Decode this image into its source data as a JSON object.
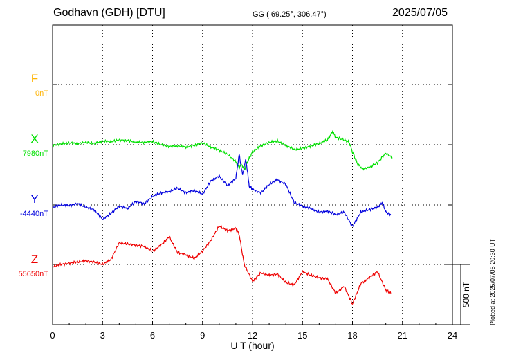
{
  "header": {
    "station": "Godhavn (GDH)  [DTU]",
    "coords": "GG ( 69.25°, 306.47°)",
    "date": "2025/07/05"
  },
  "footer": {
    "plotted": "Plotted at 2025/07/05 20:30 UT"
  },
  "chart_data": {
    "type": "line",
    "xlabel": "U T (hour)",
    "xlim": [
      0,
      24
    ],
    "xticks": [
      "0",
      "3",
      "6",
      "9",
      "12",
      "15",
      "18",
      "21",
      "24"
    ],
    "scale_bar_label": "500 nT",
    "scale_bar_nT": 500,
    "grid": true,
    "colors": {
      "F": "#ffb300",
      "X": "#00e000",
      "Y": "#0000dd",
      "Z": "#ee0000"
    },
    "series": [
      {
        "name": "F",
        "baseline_label": "0nT",
        "points": []
      },
      {
        "name": "X",
        "baseline_label": "7980nT",
        "points": [
          [
            0,
            -5
          ],
          [
            0.5,
            5
          ],
          [
            1,
            15
          ],
          [
            1.5,
            10
          ],
          [
            2,
            20
          ],
          [
            2.5,
            10
          ],
          [
            3,
            30
          ],
          [
            3.5,
            25
          ],
          [
            4,
            40
          ],
          [
            4.5,
            35
          ],
          [
            5,
            20
          ],
          [
            5.5,
            20
          ],
          [
            6,
            25
          ],
          [
            6.5,
            0
          ],
          [
            7,
            -15
          ],
          [
            7.5,
            -10
          ],
          [
            8,
            -20
          ],
          [
            8.5,
            -5
          ],
          [
            9,
            15
          ],
          [
            9.5,
            -20
          ],
          [
            10,
            -45
          ],
          [
            10.5,
            -80
          ],
          [
            11,
            -140
          ],
          [
            11.2,
            -190
          ],
          [
            11.35,
            -160
          ],
          [
            11.5,
            -210
          ],
          [
            11.7,
            -140
          ],
          [
            12,
            -60
          ],
          [
            12.5,
            -10
          ],
          [
            13,
            20
          ],
          [
            13.5,
            30
          ],
          [
            14,
            -5
          ],
          [
            14.5,
            -40
          ],
          [
            15,
            -30
          ],
          [
            15.5,
            -10
          ],
          [
            16,
            10
          ],
          [
            16.5,
            40
          ],
          [
            16.8,
            110
          ],
          [
            17,
            60
          ],
          [
            17.5,
            40
          ],
          [
            17.8,
            20
          ],
          [
            18,
            -60
          ],
          [
            18.3,
            -160
          ],
          [
            18.6,
            -200
          ],
          [
            19,
            -190
          ],
          [
            19.5,
            -150
          ],
          [
            20,
            -70
          ],
          [
            20.4,
            -110
          ]
        ]
      },
      {
        "name": "Y",
        "baseline_label": "-4440nT",
        "points": [
          [
            0,
            -20
          ],
          [
            0.5,
            0
          ],
          [
            1,
            -5
          ],
          [
            1.5,
            10
          ],
          [
            2,
            -20
          ],
          [
            2.5,
            -40
          ],
          [
            3,
            -120
          ],
          [
            3.5,
            -70
          ],
          [
            4,
            -10
          ],
          [
            4.5,
            -30
          ],
          [
            5,
            30
          ],
          [
            5.5,
            10
          ],
          [
            6,
            70
          ],
          [
            6.5,
            100
          ],
          [
            7,
            110
          ],
          [
            7.5,
            140
          ],
          [
            8,
            100
          ],
          [
            8.5,
            120
          ],
          [
            9,
            90
          ],
          [
            9.5,
            200
          ],
          [
            10,
            240
          ],
          [
            10.5,
            160
          ],
          [
            11,
            220
          ],
          [
            11.2,
            420
          ],
          [
            11.4,
            250
          ],
          [
            11.6,
            380
          ],
          [
            11.8,
            160
          ],
          [
            12,
            130
          ],
          [
            12.5,
            100
          ],
          [
            13,
            170
          ],
          [
            13.5,
            210
          ],
          [
            14,
            170
          ],
          [
            14.5,
            20
          ],
          [
            15,
            -10
          ],
          [
            15.5,
            -30
          ],
          [
            16,
            -60
          ],
          [
            16.5,
            -50
          ],
          [
            17,
            -80
          ],
          [
            17.5,
            -60
          ],
          [
            18,
            -180
          ],
          [
            18.5,
            -60
          ],
          [
            19,
            -40
          ],
          [
            19.5,
            -20
          ],
          [
            19.8,
            20
          ],
          [
            20,
            -60
          ],
          [
            20.3,
            -80
          ]
        ]
      },
      {
        "name": "Z",
        "baseline_label": "55650nT",
        "points": [
          [
            0,
            -20
          ],
          [
            0.5,
            0
          ],
          [
            1,
            10
          ],
          [
            1.5,
            20
          ],
          [
            2,
            30
          ],
          [
            2.5,
            20
          ],
          [
            3,
            0
          ],
          [
            3.5,
            40
          ],
          [
            4,
            180
          ],
          [
            4.5,
            170
          ],
          [
            5,
            160
          ],
          [
            5.5,
            150
          ],
          [
            6,
            110
          ],
          [
            6.5,
            160
          ],
          [
            7,
            230
          ],
          [
            7.5,
            100
          ],
          [
            8,
            80
          ],
          [
            8.5,
            50
          ],
          [
            9,
            110
          ],
          [
            9.5,
            200
          ],
          [
            10,
            320
          ],
          [
            10.5,
            280
          ],
          [
            11,
            300
          ],
          [
            11.2,
            250
          ],
          [
            11.5,
            0
          ],
          [
            12,
            -140
          ],
          [
            12.5,
            -70
          ],
          [
            13,
            -90
          ],
          [
            13.5,
            -80
          ],
          [
            14,
            -150
          ],
          [
            14.5,
            -170
          ],
          [
            15,
            -60
          ],
          [
            15.5,
            -90
          ],
          [
            16,
            -110
          ],
          [
            16.5,
            -120
          ],
          [
            17,
            -240
          ],
          [
            17.5,
            -180
          ],
          [
            18,
            -330
          ],
          [
            18.5,
            -160
          ],
          [
            19,
            -110
          ],
          [
            19.5,
            -60
          ],
          [
            20,
            -210
          ],
          [
            20.3,
            -240
          ]
        ]
      }
    ]
  }
}
